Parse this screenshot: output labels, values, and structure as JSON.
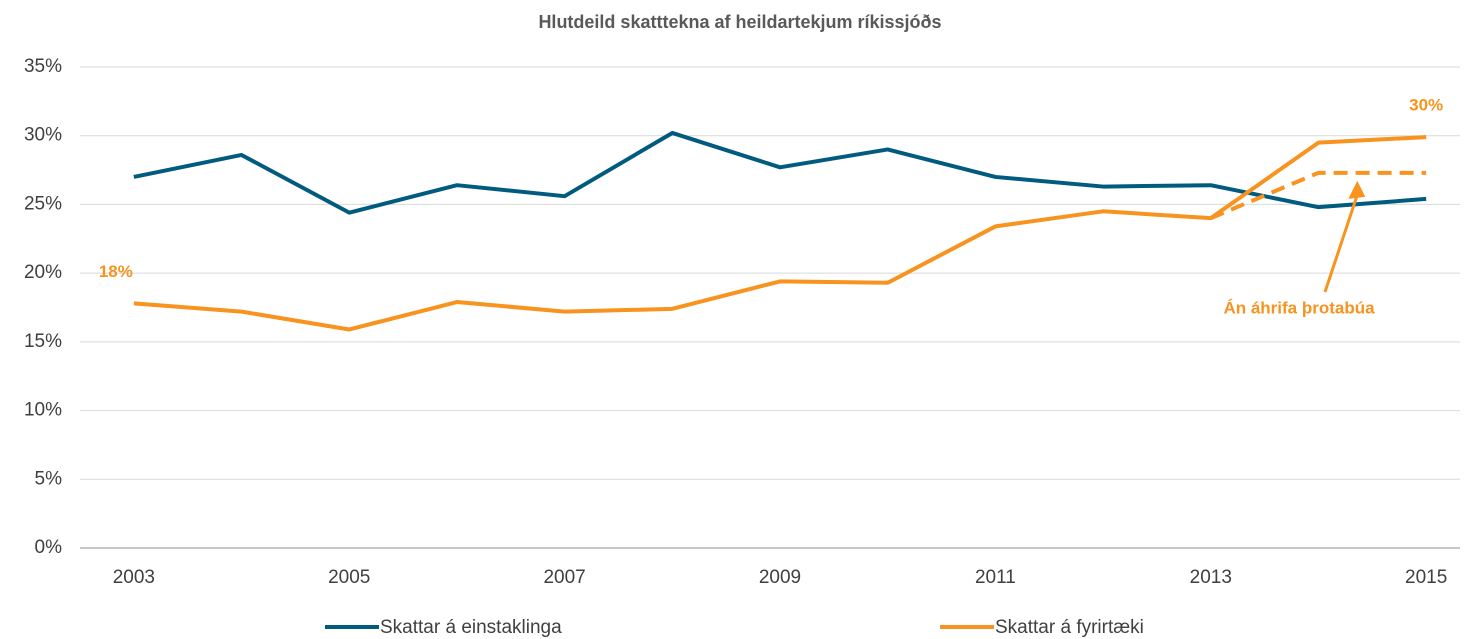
{
  "chart_data": {
    "type": "line",
    "title": "Hlutdeild skatttekna af heildartekjum ríkissjóðs",
    "x": [
      2003,
      2004,
      2005,
      2006,
      2007,
      2008,
      2009,
      2010,
      2011,
      2012,
      2013,
      2014,
      2015
    ],
    "xlim": [
      2002.5,
      2015.5
    ],
    "xticks": [
      2003,
      2005,
      2007,
      2009,
      2011,
      2013,
      2015
    ],
    "ylim": [
      0,
      35
    ],
    "yticks": [
      {
        "value": 0,
        "label": "0%"
      },
      {
        "value": 5,
        "label": "5%"
      },
      {
        "value": 10,
        "label": "10%"
      },
      {
        "value": 15,
        "label": "15%"
      },
      {
        "value": 20,
        "label": "20%"
      },
      {
        "value": 25,
        "label": "25%"
      },
      {
        "value": 30,
        "label": "30%"
      },
      {
        "value": 35,
        "label": "35%"
      }
    ],
    "grid": true,
    "legend": "bottom",
    "series": [
      {
        "name": "Skattar á einstaklinga",
        "color": "#005b7f",
        "values": [
          27.0,
          28.6,
          24.4,
          26.4,
          25.6,
          30.2,
          27.7,
          29.0,
          27.0,
          26.3,
          26.4,
          24.8,
          25.4
        ]
      },
      {
        "name": "Skattar á fyrirtæki",
        "color": "#f7931e",
        "values": [
          17.8,
          17.2,
          15.9,
          17.9,
          17.2,
          17.4,
          19.4,
          19.3,
          23.4,
          24.5,
          24.0,
          29.5,
          29.9
        ],
        "value_labels": [
          "18%",
          null,
          null,
          null,
          null,
          null,
          null,
          null,
          null,
          null,
          null,
          null,
          "30%"
        ]
      }
    ],
    "dashed_series": {
      "color": "#f7931e",
      "dashed": true,
      "values": [
        null,
        null,
        null,
        null,
        null,
        null,
        null,
        null,
        null,
        null,
        24.0,
        27.3,
        27.3
      ]
    },
    "annotation": "Án áhrifa þrotabúa"
  }
}
